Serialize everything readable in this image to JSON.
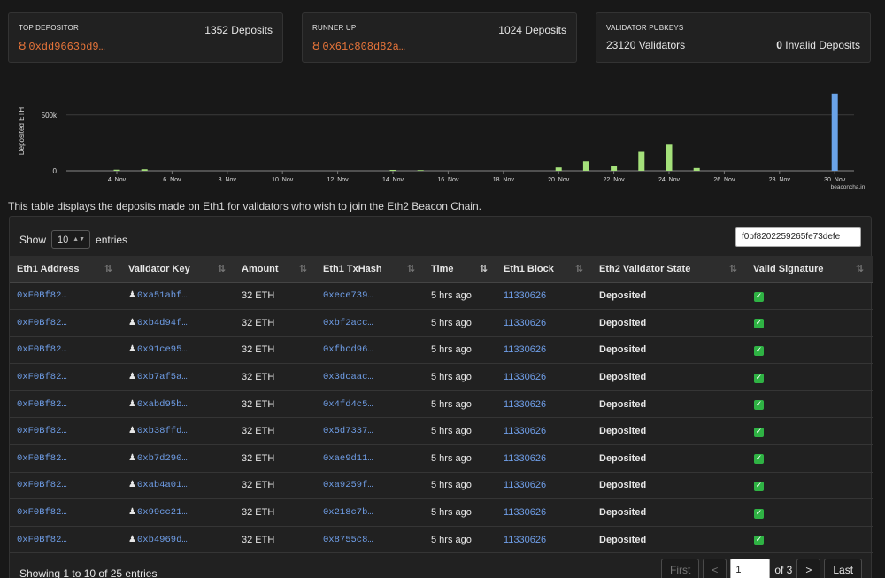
{
  "cards": {
    "top_depositor": {
      "label": "TOP DEPOSITOR",
      "count": "1352 Deposits",
      "address": "0xdd9663bd9…"
    },
    "runner_up": {
      "label": "RUNNER UP",
      "count": "1024 Deposits",
      "address": "0x61c808d82a…"
    },
    "validator_pubkeys": {
      "label": "VALIDATOR PUBKEYS",
      "validators": "23120 Validators",
      "invalid_count": "0",
      "invalid_label": " Invalid Deposits"
    }
  },
  "chart_data": {
    "type": "bar",
    "ylabel": "Deposited ETH",
    "yticks": [
      {
        "value": 0,
        "label": "0"
      },
      {
        "value": 500000,
        "label": "500k"
      }
    ],
    "ylim": [
      0,
      720000
    ],
    "xticks": [
      "4. Nov",
      "6. Nov",
      "8. Nov",
      "10. Nov",
      "12. Nov",
      "14. Nov",
      "16. Nov",
      "18. Nov",
      "20. Nov",
      "22. Nov",
      "24. Nov",
      "26. Nov",
      "28. Nov",
      "30. Nov"
    ],
    "credit": "beaconcha.in",
    "bars": [
      {
        "date": "2020-11-04",
        "value": 10000,
        "color": "#a4e07a"
      },
      {
        "date": "2020-11-05",
        "value": 14000,
        "color": "#a4e07a"
      },
      {
        "date": "2020-11-14",
        "value": 8000,
        "color": "#a4e07a"
      },
      {
        "date": "2020-11-15",
        "value": 6000,
        "color": "#a4e07a"
      },
      {
        "date": "2020-11-20",
        "value": 30000,
        "color": "#a4e07a"
      },
      {
        "date": "2020-11-21",
        "value": 85000,
        "color": "#a4e07a"
      },
      {
        "date": "2020-11-22",
        "value": 40000,
        "color": "#a4e07a"
      },
      {
        "date": "2020-11-23",
        "value": 170000,
        "color": "#a4e07a"
      },
      {
        "date": "2020-11-24",
        "value": 235000,
        "color": "#a4e07a"
      },
      {
        "date": "2020-11-25",
        "value": 25000,
        "color": "#a4e07a"
      },
      {
        "date": "2020-11-30",
        "value": 690000,
        "color": "#6aa3e8"
      }
    ]
  },
  "intro": "This table displays the deposits made on Eth1 for validators who wish to join the Eth2 Beacon Chain.",
  "controls": {
    "show": "Show",
    "entries_value": "10",
    "entries": "entries",
    "search_value": "f0bf8202259265fe73defe"
  },
  "table": {
    "headers": [
      "Eth1 Address",
      "Validator Key",
      "Amount",
      "Eth1 TxHash",
      "Time",
      "Eth1 Block",
      "Eth2 Validator State",
      "Valid Signature"
    ],
    "rows": [
      {
        "addr": "0xF0Bf82…",
        "key": "0xa51abf…",
        "amount": "32 ETH",
        "tx": "0xece739…",
        "time": "5 hrs ago",
        "block": "11330626",
        "state": "Deposited"
      },
      {
        "addr": "0xF0Bf82…",
        "key": "0xb4d94f…",
        "amount": "32 ETH",
        "tx": "0xbf2acc…",
        "time": "5 hrs ago",
        "block": "11330626",
        "state": "Deposited"
      },
      {
        "addr": "0xF0Bf82…",
        "key": "0x91ce95…",
        "amount": "32 ETH",
        "tx": "0xfbcd96…",
        "time": "5 hrs ago",
        "block": "11330626",
        "state": "Deposited"
      },
      {
        "addr": "0xF0Bf82…",
        "key": "0xb7af5a…",
        "amount": "32 ETH",
        "tx": "0x3dcaac…",
        "time": "5 hrs ago",
        "block": "11330626",
        "state": "Deposited"
      },
      {
        "addr": "0xF0Bf82…",
        "key": "0xabd95b…",
        "amount": "32 ETH",
        "tx": "0x4fd4c5…",
        "time": "5 hrs ago",
        "block": "11330626",
        "state": "Deposited"
      },
      {
        "addr": "0xF0Bf82…",
        "key": "0xb38ffd…",
        "amount": "32 ETH",
        "tx": "0x5d7337…",
        "time": "5 hrs ago",
        "block": "11330626",
        "state": "Deposited"
      },
      {
        "addr": "0xF0Bf82…",
        "key": "0xb7d290…",
        "amount": "32 ETH",
        "tx": "0xae9d11…",
        "time": "5 hrs ago",
        "block": "11330626",
        "state": "Deposited"
      },
      {
        "addr": "0xF0Bf82…",
        "key": "0xab4a01…",
        "amount": "32 ETH",
        "tx": "0xa9259f…",
        "time": "5 hrs ago",
        "block": "11330626",
        "state": "Deposited"
      },
      {
        "addr": "0xF0Bf82…",
        "key": "0x99cc21…",
        "amount": "32 ETH",
        "tx": "0x218c7b…",
        "time": "5 hrs ago",
        "block": "11330626",
        "state": "Deposited"
      },
      {
        "addr": "0xF0Bf82…",
        "key": "0xb4969d…",
        "amount": "32 ETH",
        "tx": "0x8755c8…",
        "time": "5 hrs ago",
        "block": "11330626",
        "state": "Deposited"
      }
    ]
  },
  "footer": {
    "info": "Showing 1 to 10 of 25 entries",
    "first": "First",
    "prev": "<",
    "page": "1",
    "of": "of 3",
    "next": ">",
    "last": "Last"
  }
}
